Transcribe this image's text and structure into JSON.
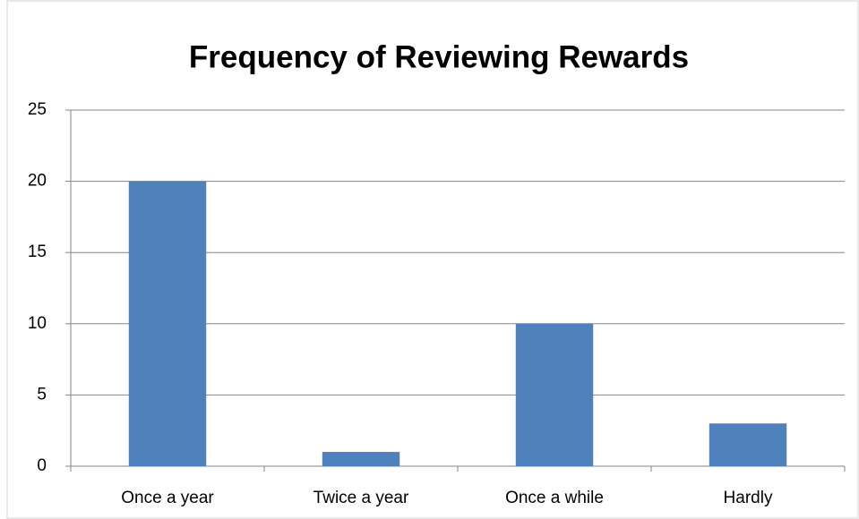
{
  "chart_data": {
    "type": "bar",
    "title": "Frequency of Reviewing Rewards",
    "categories": [
      "Once a year",
      "Twice a year",
      "Once a while",
      "Hardly"
    ],
    "values": [
      20,
      1,
      10,
      3
    ],
    "color": "#4f81bd",
    "ylim": [
      0,
      25
    ],
    "yticks": [
      0,
      5,
      10,
      15,
      20,
      25
    ],
    "grid": true
  }
}
